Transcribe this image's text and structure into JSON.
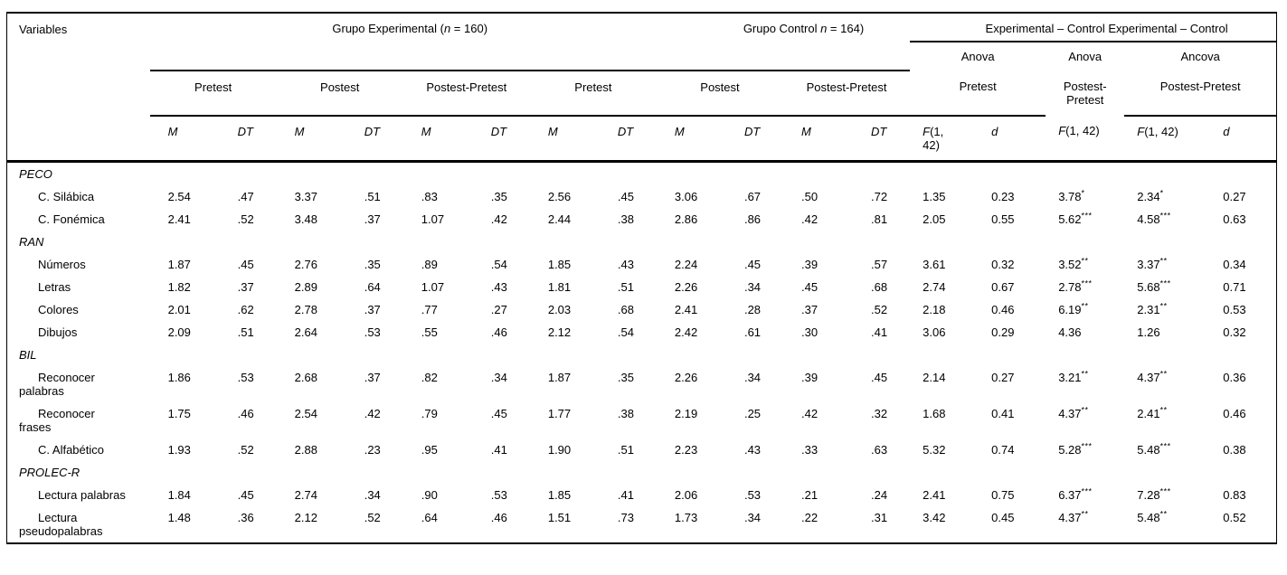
{
  "table": {
    "header": {
      "variables": "Variables",
      "group_experimental": {
        "pre": "Grupo Experimental (",
        "n": "n",
        "post": " = 160)"
      },
      "group_control": {
        "pre": "Grupo Control ",
        "n": "n",
        "post": " = 164)"
      },
      "group_diff": "Experimental – Control Experimental – Control",
      "anova": "Anova",
      "ancova": "Ancova",
      "sub": {
        "pretest": "Pretest",
        "postest": "Postest",
        "postest_pretest": "Postest-Pretest"
      },
      "cols": {
        "m": "M",
        "dt": "DT",
        "f_sym": "F",
        "f_args": "(1, 42)",
        "d": "d"
      }
    },
    "rows": [
      {
        "type": "section",
        "label": "PECO"
      },
      {
        "type": "item",
        "label": "C. Silábica",
        "values": [
          "2.54",
          ".47",
          "3.37",
          ".51",
          ".83",
          ".35",
          "2.56",
          ".45",
          "3.06",
          ".67",
          ".50",
          ".72"
        ],
        "anova_pretest_f": "1.35",
        "anova_pretest_d": "0.23",
        "anova_postpre_f": "3.78",
        "anova_postpre_sig": "*",
        "ancova_f": "2.34",
        "ancova_sig": "*",
        "ancova_d": "0.27"
      },
      {
        "type": "item",
        "label": "C. Fonémica",
        "values": [
          "2.41",
          ".52",
          "3.48",
          ".37",
          "1.07",
          ".42",
          "2.44",
          ".38",
          "2.86",
          ".86",
          ".42",
          ".81"
        ],
        "anova_pretest_f": "2.05",
        "anova_pretest_d": "0.55",
        "anova_postpre_f": "5.62",
        "anova_postpre_sig": "***",
        "ancova_f": "4.58",
        "ancova_sig": "***",
        "ancova_d": "0.63"
      },
      {
        "type": "section",
        "label": "RAN"
      },
      {
        "type": "item",
        "label": "Números",
        "values": [
          "1.87",
          ".45",
          "2.76",
          ".35",
          ".89",
          ".54",
          "1.85",
          ".43",
          "2.24",
          ".45",
          ".39",
          ".57"
        ],
        "anova_pretest_f": "3.61",
        "anova_pretest_d": "0.32",
        "anova_postpre_f": "3.52",
        "anova_postpre_sig": "**",
        "ancova_f": "3.37",
        "ancova_sig": "**",
        "ancova_d": "0.34"
      },
      {
        "type": "item",
        "label": "Letras",
        "values": [
          "1.82",
          ".37",
          "2.89",
          ".64",
          "1.07",
          ".43",
          "1.81",
          ".51",
          "2.26",
          ".34",
          ".45",
          ".68"
        ],
        "anova_pretest_f": "2.74",
        "anova_pretest_d": "0.67",
        "anova_postpre_f": "2.78",
        "anova_postpre_sig": "***",
        "ancova_f": "5.68",
        "ancova_sig": "***",
        "ancova_d": "0.71"
      },
      {
        "type": "item",
        "label": "Colores",
        "values": [
          "2.01",
          ".62",
          "2.78",
          ".37",
          ".77",
          ".27",
          "2.03",
          ".68",
          "2.41",
          ".28",
          ".37",
          ".52"
        ],
        "anova_pretest_f": "2.18",
        "anova_pretest_d": "0.46",
        "anova_postpre_f": "6.19",
        "anova_postpre_sig": "**",
        "ancova_f": "2.31",
        "ancova_sig": "**",
        "ancova_d": "0.53"
      },
      {
        "type": "item",
        "label": "Dibujos",
        "values": [
          "2.09",
          ".51",
          "2.64",
          ".53",
          ".55",
          ".46",
          "2.12",
          ".54",
          "2.42",
          ".61",
          ".30",
          ".41"
        ],
        "anova_pretest_f": "3.06",
        "anova_pretest_d": "0.29",
        "anova_postpre_f": "4.36",
        "anova_postpre_sig": "",
        "ancova_f": "1.26",
        "ancova_sig": "",
        "ancova_d": "0.32"
      },
      {
        "type": "section",
        "label": "BIL"
      },
      {
        "type": "item",
        "label": "Reconocer palabras",
        "values": [
          "1.86",
          ".53",
          "2.68",
          ".37",
          ".82",
          ".34",
          "1.87",
          ".35",
          "2.26",
          ".34",
          ".39",
          ".45"
        ],
        "anova_pretest_f": "2.14",
        "anova_pretest_d": "0.27",
        "anova_postpre_f": "3.21",
        "anova_postpre_sig": "**",
        "ancova_f": "4.37",
        "ancova_sig": "**",
        "ancova_d": "0.36"
      },
      {
        "type": "item",
        "label": "Reconocer frases",
        "values": [
          "1.75",
          ".46",
          "2.54",
          ".42",
          ".79",
          ".45",
          "1.77",
          ".38",
          "2.19",
          ".25",
          ".42",
          ".32"
        ],
        "anova_pretest_f": "1.68",
        "anova_pretest_d": "0.41",
        "anova_postpre_f": "4.37",
        "anova_postpre_sig": "**",
        "ancova_f": "2.41",
        "ancova_sig": "**",
        "ancova_d": "0.46"
      },
      {
        "type": "item",
        "label": "C. Alfabético",
        "values": [
          "1.93",
          ".52",
          "2.88",
          ".23",
          ".95",
          ".41",
          "1.90",
          ".51",
          "2.23",
          ".43",
          ".33",
          ".63"
        ],
        "anova_pretest_f": "5.32",
        "anova_pretest_d": "0.74",
        "anova_postpre_f": "5.28",
        "anova_postpre_sig": "***",
        "ancova_f": "5.48",
        "ancova_sig": "***",
        "ancova_d": "0.38"
      },
      {
        "type": "section",
        "label": "PROLEC-R"
      },
      {
        "type": "item",
        "label": "Lectura palabras",
        "values": [
          "1.84",
          ".45",
          "2.74",
          ".34",
          ".90",
          ".53",
          "1.85",
          ".41",
          "2.06",
          ".53",
          ".21",
          ".24"
        ],
        "anova_pretest_f": "2.41",
        "anova_pretest_d": "0.75",
        "anova_postpre_f": "6.37",
        "anova_postpre_sig": "***",
        "ancova_f": "7.28",
        "ancova_sig": "***",
        "ancova_d": "0.83"
      },
      {
        "type": "item",
        "label": "Lectura pseudopalabras",
        "values": [
          "1.48",
          ".36",
          "2.12",
          ".52",
          ".64",
          ".46",
          "1.51",
          ".73",
          "1.73",
          ".34",
          ".22",
          ".31"
        ],
        "anova_pretest_f": "3.42",
        "anova_pretest_d": "0.45",
        "anova_postpre_f": "4.37",
        "anova_postpre_sig": "**",
        "ancova_f": "5.48",
        "ancova_sig": "**",
        "ancova_d": "0.52"
      }
    ]
  }
}
